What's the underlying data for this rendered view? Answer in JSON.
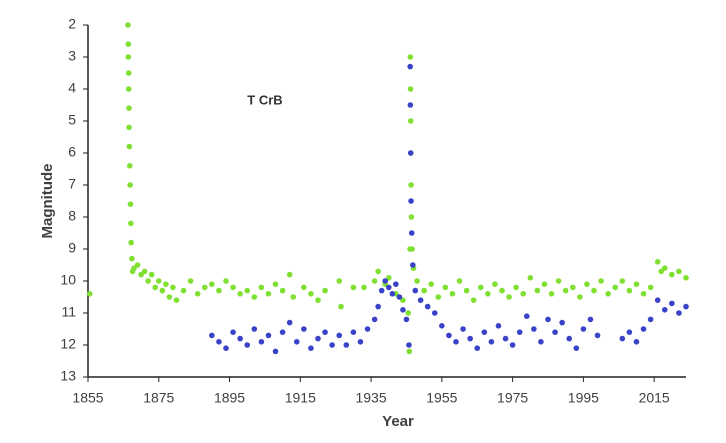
{
  "chart_data": {
    "type": "scatter",
    "annotation": "T CrB",
    "x_label": "Year",
    "y_label": "Magnitude",
    "xlim": [
      1855,
      2024
    ],
    "ylim": [
      2,
      13
    ],
    "y_inverted": true,
    "xticks": [
      1855,
      1875,
      1895,
      1915,
      1935,
      1955,
      1975,
      1995,
      2015
    ],
    "yticks": [
      2,
      3,
      4,
      5,
      6,
      7,
      8,
      9,
      10,
      11,
      12,
      13
    ],
    "grid": false,
    "series": [
      {
        "color": "#7fe032",
        "x": [
          1855.5,
          1866.3,
          1866.4,
          1866.4,
          1866.5,
          1866.5,
          1866.6,
          1866.6,
          1866.7,
          1866.8,
          1866.9,
          1867.0,
          1867.1,
          1867.2,
          1867.4,
          1867.6,
          1868,
          1869,
          1870,
          1871,
          1872,
          1873,
          1874,
          1875,
          1876,
          1877,
          1878,
          1879,
          1880,
          1882,
          1884,
          1886,
          1888,
          1890,
          1892,
          1894,
          1896,
          1898,
          1900,
          1902,
          1904,
          1906,
          1908,
          1910,
          1912,
          1913,
          1916,
          1918,
          1920,
          1922,
          1926,
          1926.5,
          1930,
          1933,
          1936,
          1937,
          1939,
          1940,
          1942,
          1944,
          1945.5,
          1945.8,
          1946.0,
          1946.1,
          1946.15,
          1946.2,
          1946.25,
          1946.3,
          1946.4,
          1946.6,
          1947,
          1948,
          1950,
          1952,
          1954,
          1956,
          1958,
          1960,
          1962,
          1964,
          1966,
          1968,
          1970,
          1972,
          1974,
          1976,
          1978,
          1980,
          1982,
          1984,
          1986,
          1988,
          1990,
          1992,
          1994,
          1996,
          1998,
          2000,
          2002,
          2004,
          2006,
          2008,
          2010,
          2012,
          2014,
          2016,
          2017,
          2018,
          2020,
          2022,
          2024
        ],
        "values": [
          10.4,
          2.0,
          2.6,
          3.0,
          3.5,
          4.0,
          4.6,
          5.2,
          5.8,
          6.4,
          7.0,
          7.6,
          8.2,
          8.8,
          9.3,
          9.7,
          9.6,
          9.5,
          9.8,
          9.7,
          10.0,
          9.8,
          10.2,
          10.0,
          10.3,
          10.1,
          10.5,
          10.2,
          10.6,
          10.3,
          10.0,
          10.4,
          10.2,
          10.1,
          10.3,
          10.0,
          10.2,
          10.4,
          10.3,
          10.5,
          10.2,
          10.4,
          10.1,
          10.3,
          9.8,
          10.5,
          10.2,
          10.4,
          10.6,
          10.3,
          10.0,
          10.8,
          10.2,
          10.2,
          10.0,
          9.7,
          10.1,
          9.9,
          10.4,
          10.6,
          11.0,
          12.2,
          9.0,
          3.0,
          4.0,
          5.0,
          6.0,
          7.0,
          8.0,
          9.0,
          9.6,
          10.0,
          10.3,
          10.1,
          10.5,
          10.2,
          10.4,
          10.0,
          10.3,
          10.6,
          10.2,
          10.4,
          10.1,
          10.3,
          10.5,
          10.2,
          10.4,
          9.9,
          10.3,
          10.1,
          10.4,
          10.0,
          10.3,
          10.2,
          10.5,
          10.1,
          10.3,
          10.0,
          10.4,
          10.2,
          10.0,
          10.3,
          10.1,
          10.4,
          10.2,
          9.4,
          9.7,
          9.6,
          9.8,
          9.7,
          9.9
        ]
      },
      {
        "color": "#3a42c8",
        "x": [
          1890,
          1892,
          1894,
          1896,
          1898,
          1900,
          1902,
          1904,
          1906,
          1908,
          1910,
          1912,
          1914,
          1916,
          1918,
          1920,
          1922,
          1924,
          1926,
          1928,
          1930,
          1932,
          1934,
          1936,
          1937,
          1938,
          1939,
          1940,
          1941,
          1942,
          1943,
          1944,
          1945,
          1945.7,
          1946.05,
          1946.1,
          1946.2,
          1946.3,
          1946.5,
          1946.8,
          1947.5,
          1949,
          1951,
          1953,
          1955,
          1957,
          1959,
          1961,
          1963,
          1965,
          1967,
          1969,
          1971,
          1973,
          1975,
          1977,
          1979,
          1981,
          1983,
          1985,
          1987,
          1989,
          1991,
          1993,
          1995,
          1997,
          1999,
          2006,
          2008,
          2010,
          2012,
          2014,
          2016,
          2018,
          2020,
          2022,
          2024
        ],
        "values": [
          11.7,
          11.9,
          12.1,
          11.6,
          11.8,
          12.0,
          11.5,
          11.9,
          11.7,
          12.2,
          11.6,
          11.3,
          11.9,
          11.5,
          12.1,
          11.8,
          11.6,
          12.0,
          11.7,
          12.0,
          11.6,
          11.9,
          11.5,
          11.2,
          10.8,
          10.3,
          10.0,
          10.2,
          10.4,
          10.1,
          10.5,
          10.9,
          11.2,
          12.0,
          3.3,
          4.5,
          6.0,
          7.5,
          8.5,
          9.5,
          10.3,
          10.6,
          10.8,
          11.0,
          11.4,
          11.7,
          11.9,
          11.5,
          11.8,
          12.1,
          11.6,
          11.9,
          11.4,
          11.8,
          12.0,
          11.6,
          11.1,
          11.5,
          11.9,
          11.2,
          11.6,
          11.3,
          11.8,
          12.1,
          11.5,
          11.2,
          11.7,
          11.8,
          11.6,
          11.9,
          11.5,
          11.2,
          10.6,
          10.9,
          10.7,
          11.0,
          10.8
        ]
      }
    ]
  }
}
